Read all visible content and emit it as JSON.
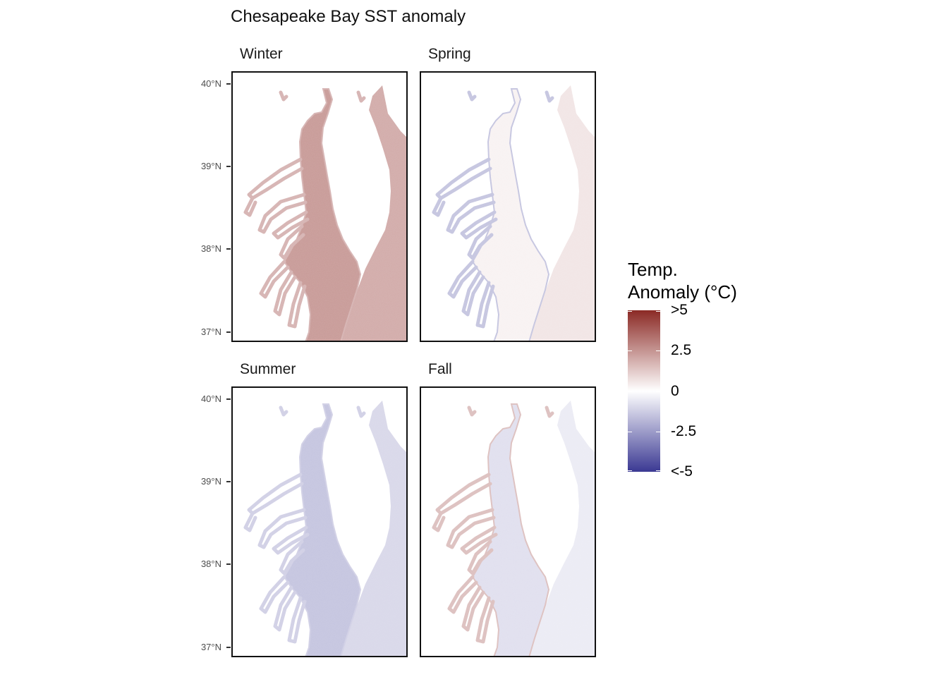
{
  "chart_data": {
    "type": "heatmap",
    "title": "Chesapeake Bay SST anomaly",
    "facets": [
      {
        "name": "Winter",
        "mean_anomaly": 2.0,
        "channel_anomaly": 2.4,
        "tributary_anomaly": 1.8
      },
      {
        "name": "Spring",
        "mean_anomaly": 0.6,
        "channel_anomaly": 0.3,
        "tributary_anomaly": -1.5
      },
      {
        "name": "Summer",
        "mean_anomaly": -1.0,
        "channel_anomaly": -1.5,
        "tributary_anomaly": -1.2
      },
      {
        "name": "Fall",
        "mean_anomaly": -0.5,
        "channel_anomaly": -0.8,
        "tributary_anomaly": 1.5
      }
    ],
    "y_axis": {
      "ticks": [
        37,
        38,
        39,
        40
      ],
      "tick_labels": [
        "37°N",
        "38°N",
        "39°N",
        "40°N"
      ],
      "range": [
        36.88,
        40.15
      ]
    },
    "legend": {
      "title_line1": "Temp.",
      "title_line2": "Anomaly (°C)",
      "placement": "right",
      "range": [
        -5,
        5
      ],
      "ticks": [
        5,
        2.5,
        0,
        -2.5,
        -5
      ],
      "tick_labels": [
        ">5",
        "2.5",
        "0",
        "-2.5",
        "<-5"
      ],
      "colors": {
        "high": "#8b2a25",
        "mid": "#ffffff",
        "low": "#3b3993"
      }
    },
    "grid": false
  }
}
